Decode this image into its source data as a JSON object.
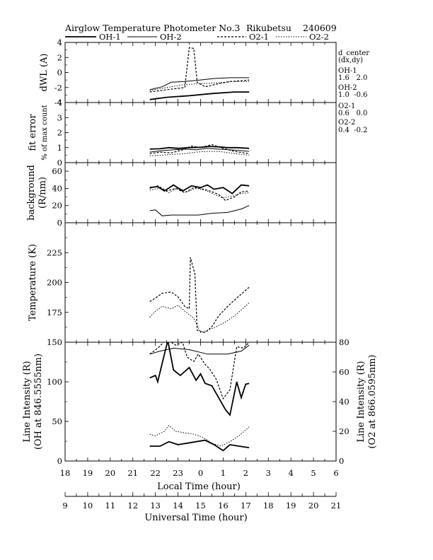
{
  "header": {
    "title": "Airglow Temperature Photometer No.3",
    "station": "Rikubetsu",
    "date": "240609"
  },
  "legend": [
    {
      "name": "OH-1",
      "dash": "solid",
      "width": 1.8
    },
    {
      "name": "OH-2",
      "dash": "solid",
      "width": 1.0
    },
    {
      "name": "O2-1",
      "dash": "3,2",
      "width": 1.2
    },
    {
      "name": "O2-2",
      "dash": "1.5,2",
      "width": 1.0
    }
  ],
  "dcenter": {
    "title": "d_center",
    "subtitle": "(dx,dy)",
    "entries": [
      {
        "name": "OH-1",
        "value": "1.6   2.0"
      },
      {
        "name": "OH-2",
        "value": "1.0  -0.6"
      },
      {
        "name": "O2-1",
        "value": "0.6   0.0"
      },
      {
        "name": "O2-2",
        "value": "0.4  -0.2"
      }
    ]
  },
  "axes": {
    "local_time": {
      "label": "Local Time (hour)",
      "ticks": [
        "18",
        "19",
        "20",
        "21",
        "22",
        "23",
        "0",
        "1",
        "2",
        "3",
        "4",
        "5",
        "6"
      ]
    },
    "universal_time": {
      "label": "Universal Time (hour)",
      "ticks": [
        "9",
        "10",
        "11",
        "12",
        "13",
        "14",
        "15",
        "16",
        "17",
        "18",
        "19",
        "20",
        "21"
      ]
    }
  },
  "chart_data": [
    {
      "type": "line",
      "ylabel": "dWL (A)",
      "xlim": [
        9,
        21
      ],
      "ylim": [
        -4,
        4
      ],
      "yticks": [
        -4,
        -2,
        0,
        2,
        4
      ],
      "series": [
        {
          "name": "OH-1",
          "points": [
            [
              12.75,
              -3.6
            ],
            [
              13.5,
              -3.3
            ],
            [
              14.5,
              -3.1
            ],
            [
              15.5,
              -2.8
            ],
            [
              16.5,
              -2.6
            ],
            [
              17.15,
              -2.6
            ]
          ]
        },
        {
          "name": "OH-2",
          "points": [
            [
              12.75,
              -2.3
            ],
            [
              13.3,
              -1.9
            ],
            [
              13.7,
              -1.3
            ],
            [
              14.3,
              -1.2
            ],
            [
              15.0,
              -1.0
            ],
            [
              15.6,
              -0.8
            ],
            [
              16.3,
              -0.7
            ],
            [
              17.15,
              -0.7
            ]
          ]
        },
        {
          "name": "O2-1",
          "points": [
            [
              12.75,
              -2.6
            ],
            [
              13.5,
              -2.3
            ],
            [
              14.3,
              -2.0
            ],
            [
              14.5,
              3.3
            ],
            [
              14.7,
              3.2
            ],
            [
              14.85,
              -1.3
            ],
            [
              15.2,
              -1.9
            ],
            [
              15.5,
              -1.7
            ],
            [
              15.8,
              -1.5
            ],
            [
              16.3,
              -1.2
            ],
            [
              16.8,
              -1.1
            ],
            [
              17.15,
              -1.0
            ]
          ]
        },
        {
          "name": "O2-2",
          "points": [
            [
              12.75,
              -2.4
            ],
            [
              13.5,
              -2.0
            ],
            [
              14.3,
              -1.6
            ],
            [
              15.0,
              -1.5
            ],
            [
              15.7,
              -1.4
            ],
            [
              16.4,
              -1.2
            ],
            [
              17.15,
              -1.2
            ]
          ]
        }
      ]
    },
    {
      "type": "line",
      "ylabel": "fit error",
      "ylabel2": "% of max count",
      "xlim": [
        9,
        21
      ],
      "ylim": [
        0,
        4
      ],
      "yticks": [
        0,
        1,
        2,
        3,
        4
      ],
      "series": [
        {
          "name": "OH-1",
          "points": [
            [
              12.75,
              0.9
            ],
            [
              13.2,
              0.92
            ],
            [
              13.6,
              1.0
            ],
            [
              14.0,
              0.95
            ],
            [
              14.5,
              1.0
            ],
            [
              15.0,
              1.02
            ],
            [
              15.4,
              1.08
            ],
            [
              15.8,
              1.05
            ],
            [
              16.2,
              1.0
            ],
            [
              16.6,
              1.0
            ],
            [
              17.15,
              0.95
            ]
          ]
        },
        {
          "name": "OH-2",
          "points": [
            [
              12.75,
              0.7
            ],
            [
              13.3,
              0.8
            ],
            [
              13.8,
              0.85
            ],
            [
              14.3,
              0.9
            ],
            [
              14.8,
              0.85
            ],
            [
              15.3,
              0.95
            ],
            [
              15.8,
              0.9
            ],
            [
              16.3,
              0.85
            ],
            [
              16.8,
              0.8
            ],
            [
              17.15,
              0.75
            ]
          ]
        },
        {
          "name": "O2-1",
          "points": [
            [
              12.75,
              0.6
            ],
            [
              13.2,
              0.7
            ],
            [
              13.7,
              0.65
            ],
            [
              14.2,
              0.85
            ],
            [
              14.6,
              1.1
            ],
            [
              15.0,
              1.0
            ],
            [
              15.5,
              1.2
            ],
            [
              16.0,
              0.95
            ],
            [
              16.5,
              0.75
            ],
            [
              17.15,
              0.6
            ]
          ]
        },
        {
          "name": "O2-2",
          "points": [
            [
              12.75,
              0.45
            ],
            [
              13.3,
              0.5
            ],
            [
              13.8,
              0.55
            ],
            [
              14.3,
              0.6
            ],
            [
              14.8,
              0.7
            ],
            [
              15.3,
              0.75
            ],
            [
              15.8,
              0.75
            ],
            [
              16.3,
              0.65
            ],
            [
              16.8,
              0.55
            ],
            [
              17.15,
              0.5
            ]
          ]
        }
      ]
    },
    {
      "type": "line",
      "ylabel": "background",
      "ylabel2": "(R/nm)",
      "xlim": [
        9,
        21
      ],
      "ylim": [
        0,
        70
      ],
      "yticks": [
        0,
        20,
        40,
        60
      ],
      "series": [
        {
          "name": "OH-1",
          "points": [
            [
              12.75,
              41
            ],
            [
              13.1,
              42
            ],
            [
              13.4,
              37
            ],
            [
              13.8,
              44
            ],
            [
              14.2,
              37
            ],
            [
              14.6,
              43
            ],
            [
              15.0,
              41
            ],
            [
              15.3,
              44
            ],
            [
              15.6,
              39
            ],
            [
              16.0,
              41
            ],
            [
              16.4,
              34
            ],
            [
              16.8,
              44
            ],
            [
              17.15,
              43
            ]
          ]
        },
        {
          "name": "OH-2",
          "points": [
            [
              12.75,
              14
            ],
            [
              13.0,
              15
            ],
            [
              13.3,
              8
            ],
            [
              13.7,
              9
            ],
            [
              14.3,
              9
            ],
            [
              14.9,
              9
            ],
            [
              15.5,
              11
            ],
            [
              16.2,
              12
            ],
            [
              16.8,
              16
            ],
            [
              17.15,
              20
            ]
          ]
        },
        {
          "name": "O2-1",
          "points": [
            [
              12.75,
              40
            ],
            [
              13.1,
              43
            ],
            [
              13.5,
              37
            ],
            [
              13.9,
              40
            ],
            [
              14.3,
              35
            ],
            [
              14.7,
              41
            ],
            [
              15.0,
              40
            ],
            [
              15.4,
              37
            ],
            [
              15.8,
              33
            ],
            [
              16.1,
              26
            ],
            [
              16.5,
              30
            ],
            [
              16.8,
              36
            ],
            [
              17.15,
              37
            ]
          ]
        },
        {
          "name": "O2-2",
          "points": [
            [
              12.75,
              38
            ],
            [
              13.2,
              40
            ],
            [
              13.6,
              35
            ],
            [
              14.0,
              41
            ],
            [
              14.4,
              36
            ],
            [
              14.8,
              40
            ],
            [
              15.2,
              38
            ],
            [
              15.6,
              33
            ],
            [
              16.0,
              29
            ],
            [
              16.4,
              31
            ],
            [
              16.8,
              34
            ],
            [
              17.15,
              35
            ]
          ]
        }
      ]
    },
    {
      "type": "line",
      "ylabel": "Temperature (K)",
      "xlim": [
        9,
        21
      ],
      "ylim": [
        150,
        250
      ],
      "yticks": [
        175,
        200,
        225
      ],
      "series": [
        {
          "name": "O2-1",
          "points": [
            [
              12.75,
              184
            ],
            [
              13.0,
              187
            ],
            [
              13.3,
              191
            ],
            [
              13.7,
              192
            ],
            [
              14.0,
              188
            ],
            [
              14.3,
              180
            ],
            [
              14.5,
              178
            ],
            [
              14.55,
              221
            ],
            [
              14.75,
              207
            ],
            [
              14.85,
              160
            ],
            [
              15.2,
              158
            ],
            [
              15.5,
              163
            ],
            [
              15.8,
              172
            ],
            [
              16.2,
              180
            ],
            [
              16.6,
              187
            ],
            [
              17.15,
              196
            ]
          ]
        },
        {
          "name": "O2-2",
          "points": [
            [
              12.75,
              171
            ],
            [
              13.0,
              176
            ],
            [
              13.3,
              180
            ],
            [
              13.7,
              178
            ],
            [
              14.0,
              181
            ],
            [
              14.3,
              176
            ],
            [
              14.7,
              170
            ],
            [
              15.0,
              158
            ],
            [
              15.3,
              160
            ],
            [
              15.7,
              163
            ],
            [
              16.1,
              167
            ],
            [
              16.5,
              172
            ],
            [
              16.8,
              177
            ],
            [
              17.15,
              183
            ]
          ]
        }
      ]
    },
    {
      "type": "line",
      "ylabel": "Line Intensity (R)",
      "ylabel2": "(OH at 846.5555nm)",
      "ylabel_right": "Line Intensity (R)",
      "ylabel_right2": "(O2 at 866.0595nm)",
      "xlim": [
        9,
        21
      ],
      "ylim": [
        0,
        150
      ],
      "yticks": [
        0,
        50,
        100,
        150
      ],
      "ylim_right": [
        0,
        80
      ],
      "yticks_right": [
        0,
        20,
        40,
        60,
        80
      ],
      "series": [
        {
          "name": "OH-1",
          "axis": "left",
          "points": [
            [
              12.75,
              105
            ],
            [
              13.0,
              108
            ],
            [
              13.1,
              100
            ],
            [
              13.4,
              135
            ],
            [
              13.55,
              152
            ],
            [
              13.8,
              115
            ],
            [
              14.1,
              108
            ],
            [
              14.5,
              118
            ],
            [
              14.8,
              102
            ],
            [
              15.0,
              110
            ],
            [
              15.2,
              98
            ],
            [
              15.5,
              95
            ],
            [
              15.8,
              80
            ],
            [
              16.1,
              65
            ],
            [
              16.3,
              58
            ],
            [
              16.6,
              100
            ],
            [
              16.8,
              80
            ],
            [
              17.0,
              97
            ],
            [
              17.15,
              98
            ]
          ]
        },
        {
          "name": "OH-1",
          "axis": "right",
          "points": [
            [
              12.75,
              10
            ],
            [
              13.2,
              10
            ],
            [
              13.6,
              13
            ],
            [
              14.0,
              11
            ],
            [
              14.4,
              12
            ],
            [
              14.8,
              13
            ],
            [
              15.2,
              14
            ],
            [
              15.6,
              11
            ],
            [
              16.0,
              7
            ],
            [
              16.3,
              11
            ],
            [
              16.7,
              10
            ],
            [
              17.15,
              9
            ]
          ]
        },
        {
          "name": "OH-2",
          "axis": "left",
          "points": [
            [
              12.75,
              150
            ],
            [
              17.15,
              150
            ]
          ]
        },
        {
          "name": "OH-2",
          "axis": "right",
          "points": [
            [
              12.75,
              72
            ],
            [
              13.2,
              74
            ],
            [
              13.8,
              76
            ],
            [
              14.5,
              75
            ],
            [
              15.3,
              72
            ],
            [
              16.2,
              72
            ],
            [
              16.8,
              74
            ],
            [
              17.15,
              78
            ]
          ]
        },
        {
          "name": "O2-1",
          "axis": "right",
          "points": [
            [
              12.75,
              72
            ],
            [
              13.1,
              76
            ],
            [
              13.5,
              82
            ],
            [
              13.9,
              78
            ],
            [
              14.2,
              80
            ],
            [
              14.4,
              70
            ],
            [
              14.7,
              67
            ],
            [
              14.9,
              72
            ],
            [
              15.2,
              65
            ],
            [
              15.4,
              62
            ],
            [
              15.7,
              55
            ],
            [
              16.0,
              42
            ],
            [
              16.3,
              48
            ],
            [
              16.6,
              77
            ],
            [
              16.9,
              76
            ],
            [
              17.15,
              80
            ]
          ]
        },
        {
          "name": "O2-2",
          "axis": "right",
          "points": [
            [
              12.75,
              18
            ],
            [
              13.0,
              17
            ],
            [
              13.4,
              20
            ],
            [
              13.6,
              24
            ],
            [
              13.9,
              20
            ],
            [
              14.3,
              19
            ],
            [
              14.7,
              18
            ],
            [
              15.1,
              16
            ],
            [
              15.5,
              12
            ],
            [
              15.9,
              10
            ],
            [
              16.3,
              13
            ],
            [
              16.7,
              17
            ],
            [
              17.15,
              23
            ]
          ]
        }
      ]
    }
  ]
}
